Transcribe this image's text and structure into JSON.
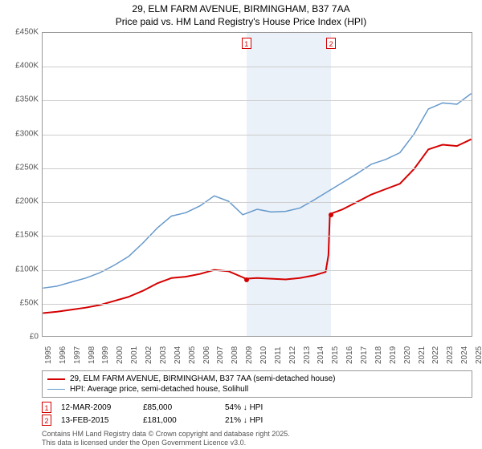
{
  "title_line1": "29, ELM FARM AVENUE, BIRMINGHAM, B37 7AA",
  "title_line2": "Price paid vs. HM Land Registry's House Price Index (HPI)",
  "chart": {
    "type": "line",
    "background_color": "#ffffff",
    "border_color": "#999999",
    "grid_color": "#cdcdcd",
    "shaded_fill": "#eaf1f8",
    "x_start": 1995,
    "x_end": 2025,
    "xticks": [
      1995,
      1996,
      1997,
      1998,
      1999,
      2000,
      2001,
      2002,
      2003,
      2004,
      2005,
      2006,
      2007,
      2008,
      2009,
      2010,
      2011,
      2012,
      2013,
      2014,
      2015,
      2016,
      2017,
      2018,
      2019,
      2020,
      2021,
      2022,
      2023,
      2024,
      2025
    ],
    "ylim": [
      0,
      450
    ],
    "yticks": [
      0,
      50,
      100,
      150,
      200,
      250,
      300,
      350,
      400,
      450
    ],
    "ytick_labels": [
      "£0",
      "£50K",
      "£100K",
      "£150K",
      "£200K",
      "£250K",
      "£300K",
      "£350K",
      "£400K",
      "£450K"
    ],
    "shaded_start": 2009.2,
    "shaded_end": 2015.1,
    "series": {
      "price_paid": {
        "label": "29, ELM FARM AVENUE, BIRMINGHAM, B37 7AA (semi-detached house)",
        "color": "#d40000",
        "width": 2,
        "points": [
          [
            1995,
            34
          ],
          [
            1996,
            36
          ],
          [
            1997,
            39
          ],
          [
            1998,
            42
          ],
          [
            1999,
            46
          ],
          [
            2000,
            52
          ],
          [
            2001,
            58
          ],
          [
            2002,
            67
          ],
          [
            2003,
            78
          ],
          [
            2004,
            86
          ],
          [
            2005,
            88
          ],
          [
            2006,
            92
          ],
          [
            2007,
            98
          ],
          [
            2008,
            96
          ],
          [
            2009,
            87
          ],
          [
            2009.2,
            85
          ],
          [
            2010,
            86
          ],
          [
            2011,
            85
          ],
          [
            2012,
            84
          ],
          [
            2013,
            86
          ],
          [
            2014,
            90
          ],
          [
            2014.8,
            95
          ],
          [
            2015.0,
            120
          ],
          [
            2015.1,
            181
          ],
          [
            2016,
            188
          ],
          [
            2017,
            199
          ],
          [
            2018,
            210
          ],
          [
            2019,
            218
          ],
          [
            2020,
            226
          ],
          [
            2021,
            248
          ],
          [
            2022,
            277
          ],
          [
            2023,
            284
          ],
          [
            2024,
            282
          ],
          [
            2025,
            292
          ]
        ]
      },
      "hpi": {
        "label": "HPI: Average price, semi-detached house, Solihull",
        "color": "#6699cc",
        "width": 1.5,
        "points": [
          [
            1995,
            71
          ],
          [
            1996,
            74
          ],
          [
            1997,
            80
          ],
          [
            1998,
            86
          ],
          [
            1999,
            94
          ],
          [
            2000,
            105
          ],
          [
            2001,
            118
          ],
          [
            2002,
            138
          ],
          [
            2003,
            160
          ],
          [
            2004,
            178
          ],
          [
            2005,
            183
          ],
          [
            2006,
            193
          ],
          [
            2007,
            208
          ],
          [
            2008,
            200
          ],
          [
            2009,
            180
          ],
          [
            2010,
            188
          ],
          [
            2011,
            184
          ],
          [
            2012,
            185
          ],
          [
            2013,
            190
          ],
          [
            2014,
            202
          ],
          [
            2015,
            215
          ],
          [
            2016,
            228
          ],
          [
            2017,
            241
          ],
          [
            2018,
            255
          ],
          [
            2019,
            262
          ],
          [
            2020,
            272
          ],
          [
            2021,
            300
          ],
          [
            2022,
            337
          ],
          [
            2023,
            346
          ],
          [
            2024,
            344
          ],
          [
            2025,
            360
          ]
        ]
      }
    },
    "markers": [
      {
        "n": "1",
        "x": 2009.2,
        "y": 85
      },
      {
        "n": "2",
        "x": 2015.1,
        "y": 181
      }
    ]
  },
  "legend": [
    {
      "color": "#d40000",
      "width": 2,
      "key": "chart.series.price_paid.label"
    },
    {
      "color": "#6699cc",
      "width": 1.5,
      "key": "chart.series.hpi.label"
    }
  ],
  "sales": [
    {
      "n": "1",
      "date": "12-MAR-2009",
      "price": "£85,000",
      "diff": "54% ↓ HPI"
    },
    {
      "n": "2",
      "date": "13-FEB-2015",
      "price": "£181,000",
      "diff": "21% ↓ HPI"
    }
  ],
  "attribution_line1": "Contains HM Land Registry data © Crown copyright and database right 2025.",
  "attribution_line2": "This data is licensed under the Open Government Licence v3.0."
}
